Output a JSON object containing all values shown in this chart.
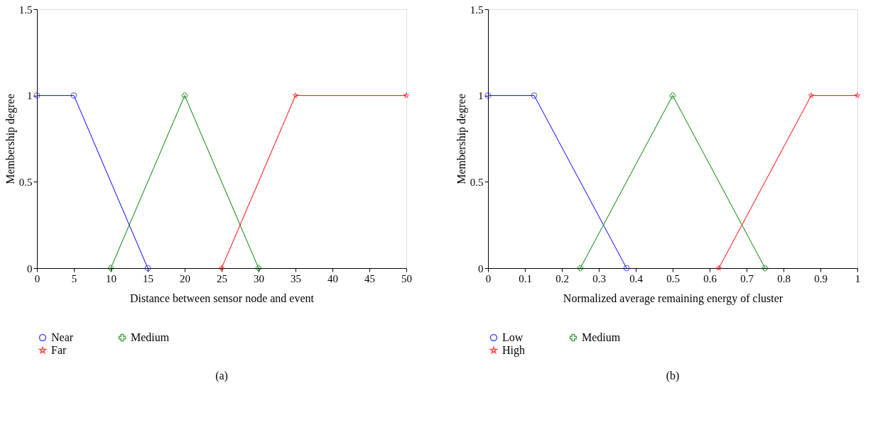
{
  "chart_data": [
    {
      "type": "line",
      "xlabel": "Distance between sensor node and event",
      "ylabel": "Membership degree",
      "annotations": [
        "(a)"
      ],
      "xlim": [
        0,
        50
      ],
      "xticks": [
        0,
        5,
        10,
        15,
        20,
        25,
        30,
        35,
        40,
        45,
        50
      ],
      "ylim": [
        0,
        1.5
      ],
      "yticks": [
        0,
        0.5,
        1,
        1.5
      ],
      "grid": false,
      "legend": "bottom",
      "series": [
        {
          "name": "Near",
          "color": "#0000ff",
          "marker": "circle",
          "x": [
            0,
            5,
            15
          ],
          "values": [
            1,
            1,
            0
          ]
        },
        {
          "name": "Medium",
          "color": "#007f00",
          "marker": "cross",
          "x": [
            10,
            20,
            30
          ],
          "values": [
            0,
            1,
            0
          ]
        },
        {
          "name": "Far",
          "color": "#ff0000",
          "marker": "star",
          "x": [
            25,
            35,
            50
          ],
          "values": [
            0,
            1,
            1
          ]
        }
      ]
    },
    {
      "type": "line",
      "xlabel": "Normalized average remaining energy of cluster",
      "ylabel": "Membership degree",
      "annotations": [
        "(b)"
      ],
      "xlim": [
        0,
        1
      ],
      "xticks": [
        0,
        0.1,
        0.2,
        0.3,
        0.4,
        0.5,
        0.6,
        0.7,
        0.8,
        0.9,
        1
      ],
      "ylim": [
        0,
        1.5
      ],
      "yticks": [
        0,
        0.5,
        1,
        1.5
      ],
      "grid": false,
      "legend": "bottom",
      "series": [
        {
          "name": "Low",
          "color": "#0000ff",
          "marker": "circle",
          "x": [
            0,
            0.125,
            0.375
          ],
          "values": [
            1,
            1,
            0
          ]
        },
        {
          "name": "Medium",
          "color": "#007f00",
          "marker": "cross",
          "x": [
            0.25,
            0.5,
            0.75
          ],
          "values": [
            0,
            1,
            0
          ]
        },
        {
          "name": "High",
          "color": "#ff0000",
          "marker": "star",
          "x": [
            0.625,
            0.875,
            1
          ],
          "values": [
            0,
            1,
            1
          ]
        }
      ]
    }
  ]
}
